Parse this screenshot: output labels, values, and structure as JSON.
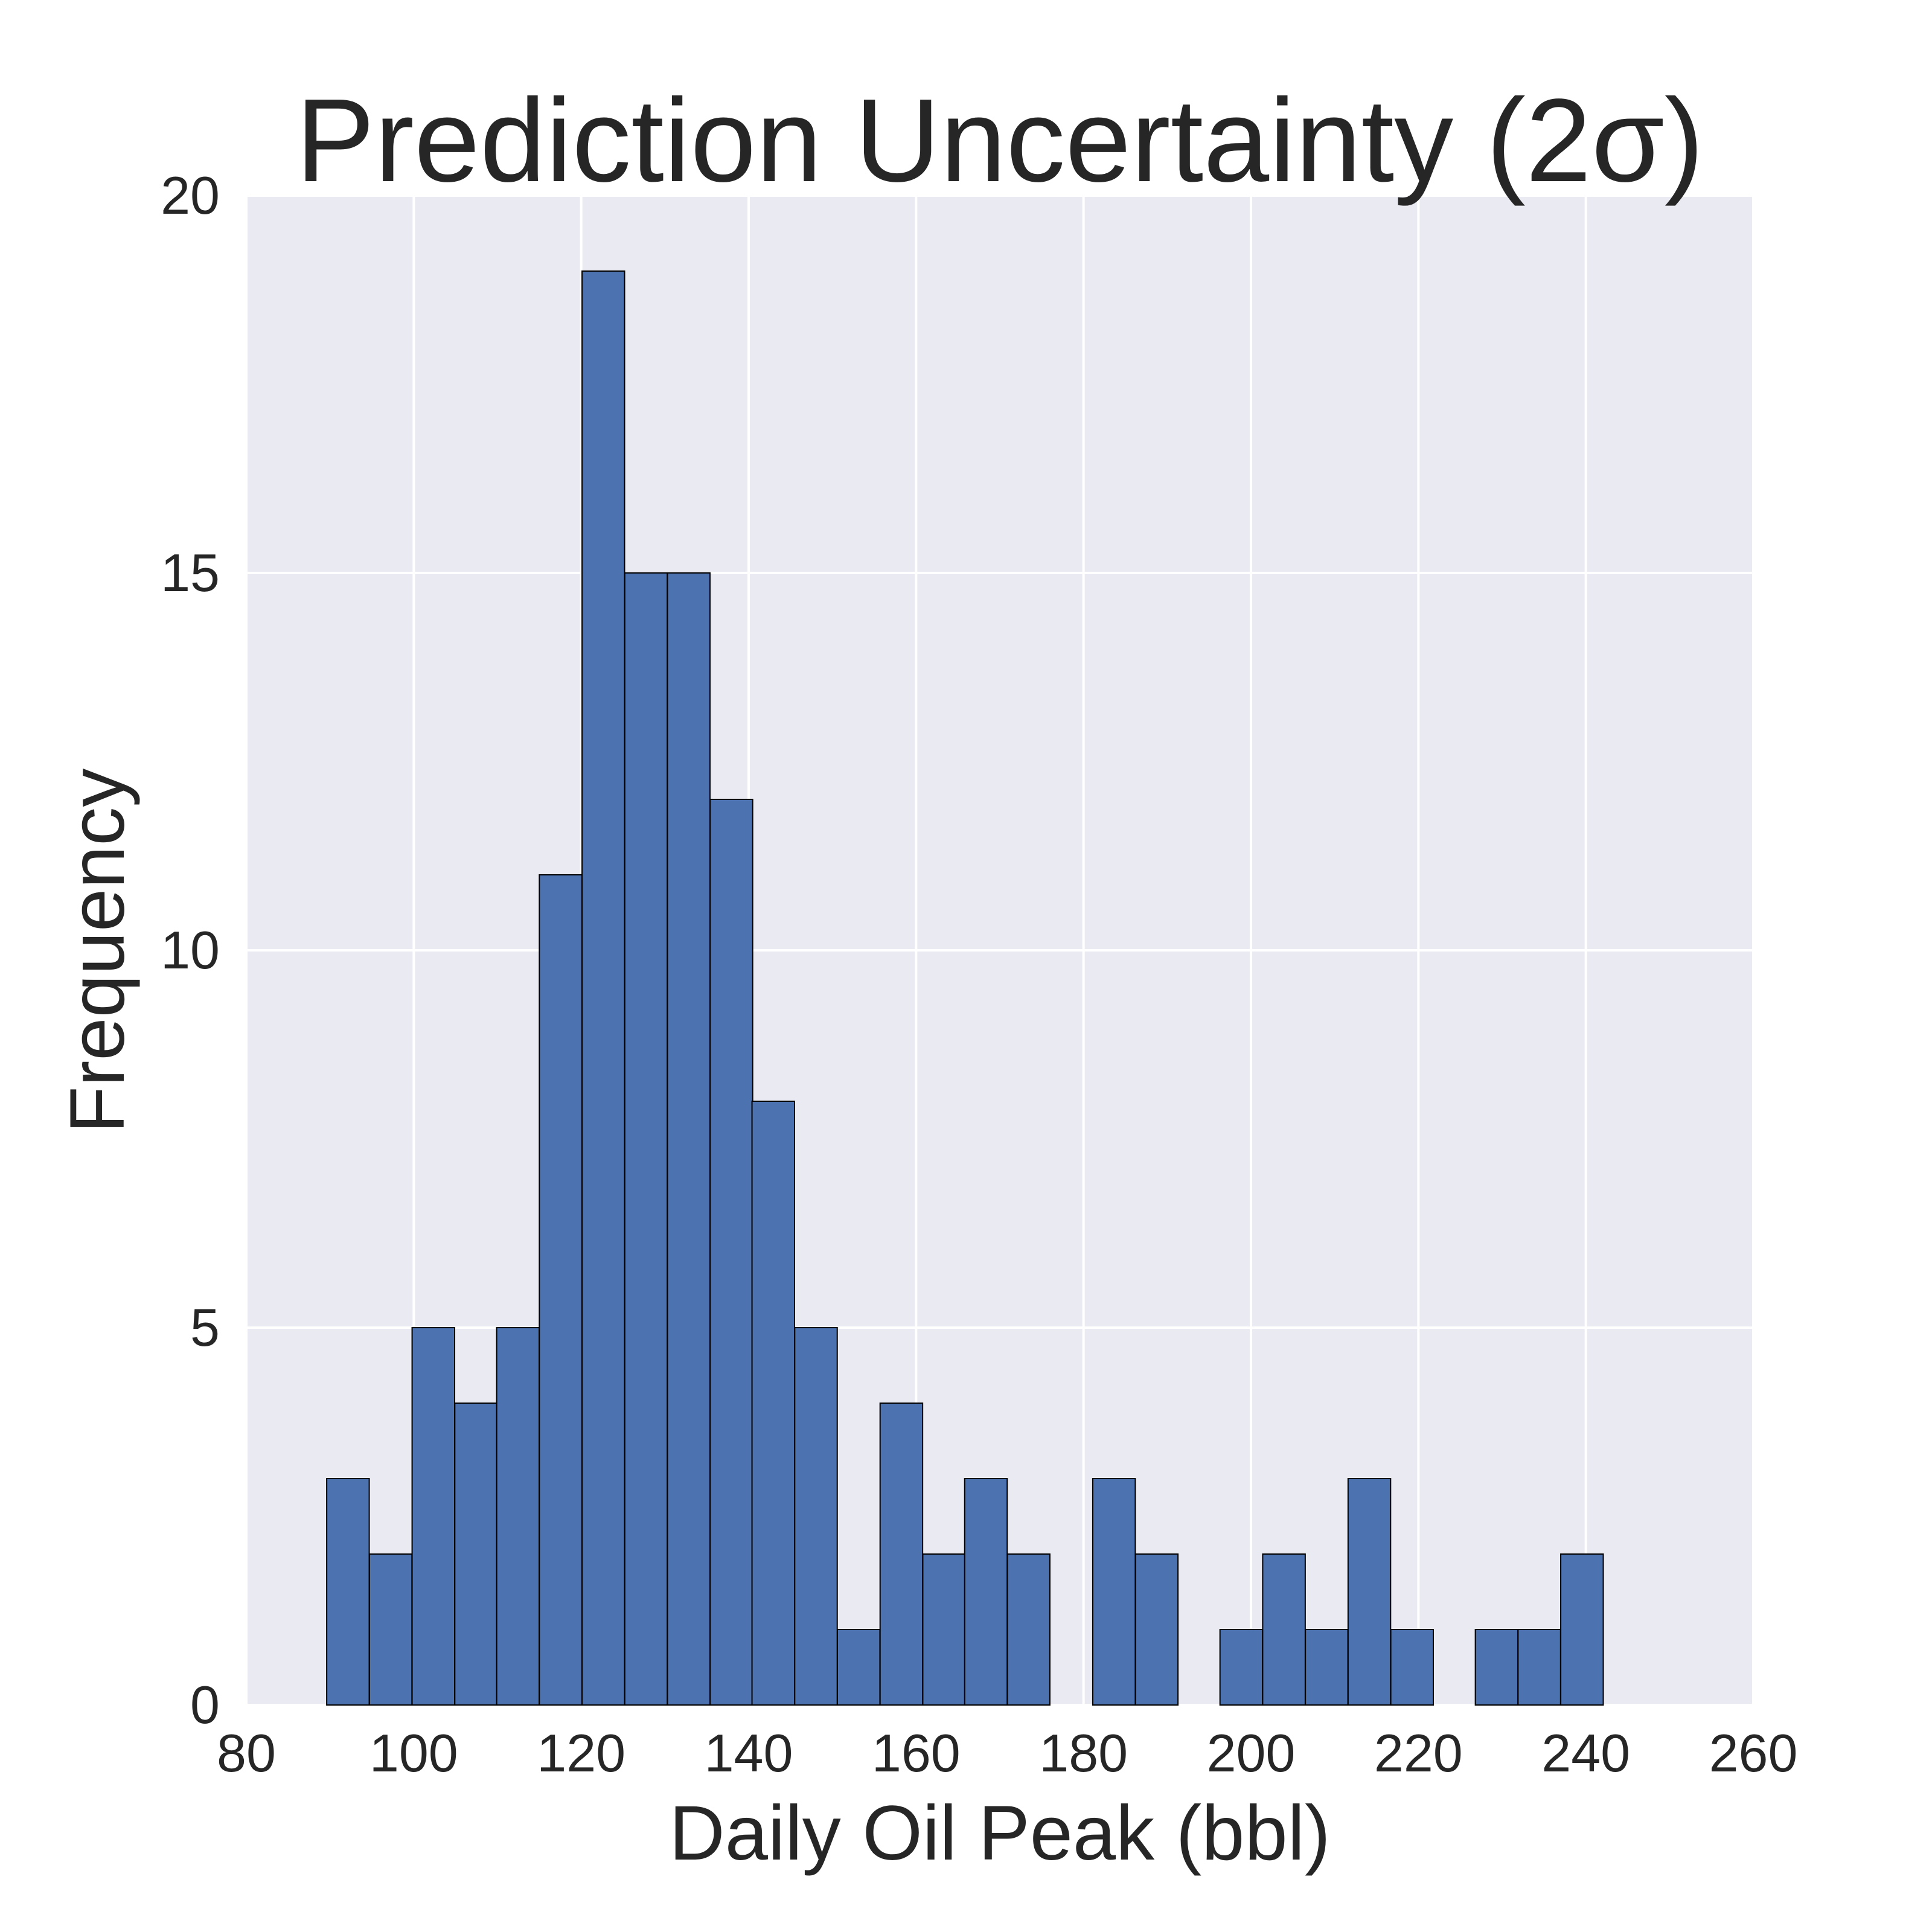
{
  "chart_data": {
    "type": "bar",
    "title": "Prediction Uncertainty (2σ)",
    "xlabel": "Daily Oil Peak (bbl)",
    "ylabel": "Frequency",
    "xlim": [
      80,
      260
    ],
    "ylim": [
      0,
      20
    ],
    "xticks": [
      80,
      100,
      120,
      140,
      160,
      180,
      200,
      220,
      240,
      260
    ],
    "yticks": [
      0,
      5,
      10,
      15,
      20
    ],
    "grid": true,
    "bin_width": 5.08,
    "bins": [
      {
        "x0": 89.6,
        "count": 3
      },
      {
        "x0": 94.7,
        "count": 2
      },
      {
        "x0": 99.8,
        "count": 5
      },
      {
        "x0": 104.9,
        "count": 4
      },
      {
        "x0": 109.9,
        "count": 5
      },
      {
        "x0": 115.0,
        "count": 11
      },
      {
        "x0": 120.1,
        "count": 19
      },
      {
        "x0": 125.2,
        "count": 15
      },
      {
        "x0": 130.3,
        "count": 15
      },
      {
        "x0": 135.4,
        "count": 12
      },
      {
        "x0": 140.4,
        "count": 8
      },
      {
        "x0": 145.5,
        "count": 5
      },
      {
        "x0": 150.6,
        "count": 1
      },
      {
        "x0": 155.7,
        "count": 4
      },
      {
        "x0": 160.8,
        "count": 2
      },
      {
        "x0": 165.8,
        "count": 3
      },
      {
        "x0": 170.9,
        "count": 2
      },
      {
        "x0": 176.0,
        "count": 0
      },
      {
        "x0": 181.1,
        "count": 3
      },
      {
        "x0": 186.2,
        "count": 2
      },
      {
        "x0": 191.3,
        "count": 0
      },
      {
        "x0": 196.3,
        "count": 1
      },
      {
        "x0": 201.4,
        "count": 2
      },
      {
        "x0": 206.5,
        "count": 1
      },
      {
        "x0": 211.6,
        "count": 3
      },
      {
        "x0": 216.7,
        "count": 1
      },
      {
        "x0": 221.7,
        "count": 0
      },
      {
        "x0": 226.8,
        "count": 1
      },
      {
        "x0": 231.9,
        "count": 1
      },
      {
        "x0": 237.0,
        "count": 2
      }
    ],
    "colors": {
      "bar": "#4c72b0",
      "plot_background": "#eaeaf2",
      "grid": "#ffffff",
      "text": "#262626"
    }
  }
}
